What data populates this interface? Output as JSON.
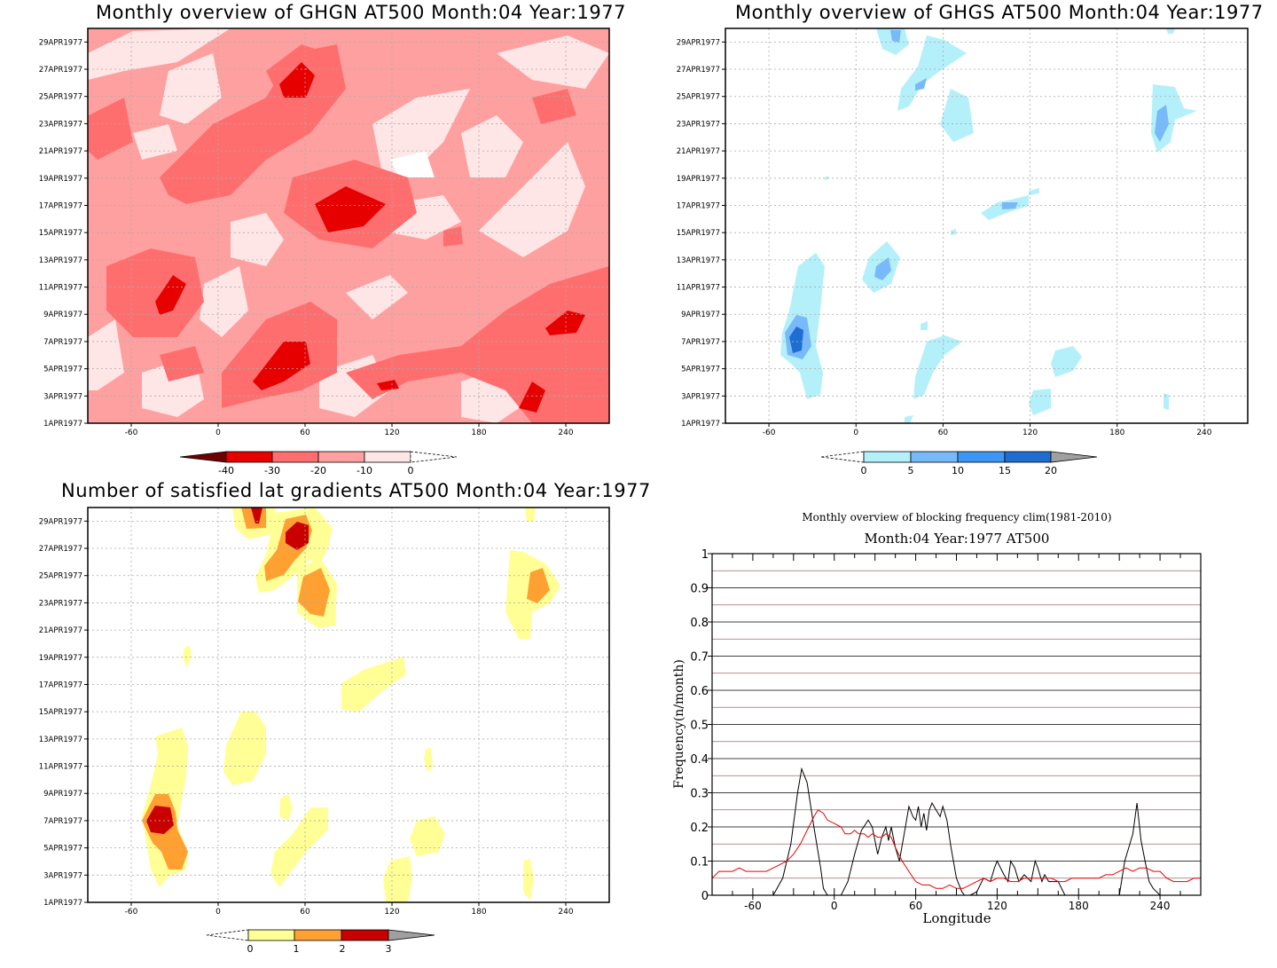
{
  "panels": {
    "ghgn": {
      "title": "Monthly overview of GHGN AT500 Month:04 Year:1977",
      "colorbar_labels": [
        "-40",
        "-30",
        "-20",
        "-10",
        "0"
      ],
      "colors": [
        "#6e0000",
        "#e60000",
        "#ff6e6e",
        "#ffa0a0",
        "#ffe6e6"
      ]
    },
    "ghgs": {
      "title": "Monthly overview of GHGS AT500 Month:04 Year:1977",
      "colorbar_labels": [
        "0",
        "5",
        "10",
        "15",
        "20"
      ],
      "colors": [
        "#b4f0fa",
        "#78b9fa",
        "#3c96f5",
        "#1e6ed2",
        "#a0a0a0"
      ]
    },
    "gradients": {
      "title": "Number of satisfied lat gradients AT500 Month:04 Year:1977",
      "colorbar_labels": [
        "0",
        "1",
        "2",
        "3"
      ],
      "colors": [
        "#ffff96",
        "#ffa032",
        "#c80000",
        "#a0a0a0"
      ]
    }
  },
  "y_ticks": [
    "29APR1977",
    "27APR1977",
    "25APR1977",
    "23APR1977",
    "21APR1977",
    "19APR1977",
    "17APR1977",
    "15APR1977",
    "13APR1977",
    "11APR1977",
    "9APR1977",
    "7APR1977",
    "5APR1977",
    "3APR1977",
    "1APR1977"
  ],
  "x_ticks": [
    "-60",
    "0",
    "60",
    "120",
    "180",
    "240"
  ],
  "chart_data": {
    "type": "line",
    "title": "Monthly overview of blocking frequency clim(1981-2010)",
    "subtitle": "Month:04 Year:1977  AT500",
    "xlabel": "Longitude",
    "ylabel": "Frequency(n/month)",
    "xlim": [
      -90,
      270
    ],
    "ylim": [
      0,
      1
    ],
    "x_ticks": [
      "-60",
      "0",
      "60",
      "120",
      "180",
      "240"
    ],
    "y_ticks": [
      "0",
      "0.1",
      "0.2",
      "0.3",
      "0.4",
      "0.5",
      "0.6",
      "0.7",
      "0.8",
      "0.9",
      "1"
    ],
    "grid": true,
    "series": [
      {
        "color": "#000000",
        "x": [
          -90,
          -45,
          -38,
          -32,
          -27,
          -24,
          -20,
          -15,
          -10,
          -8,
          -5,
          0,
          5,
          10,
          15,
          20,
          25,
          28,
          32,
          35,
          38,
          40,
          42,
          45,
          48,
          52,
          55,
          58,
          60,
          62,
          64,
          66,
          68,
          70,
          72,
          75,
          78,
          80,
          83,
          86,
          90,
          94,
          96,
          100,
          105,
          110,
          115,
          118,
          120,
          125,
          128,
          130,
          133,
          136,
          140,
          145,
          148,
          150,
          153,
          155,
          158,
          162,
          165,
          170,
          180,
          190,
          200,
          210,
          214,
          217,
          220,
          223,
          226,
          229,
          232,
          235,
          240,
          245,
          250,
          270
        ],
        "y": [
          0,
          0,
          0.05,
          0.15,
          0.3,
          0.37,
          0.33,
          0.2,
          0.08,
          0.02,
          0,
          0,
          0,
          0.04,
          0.12,
          0.19,
          0.22,
          0.2,
          0.12,
          0.17,
          0.2,
          0.16,
          0.2,
          0.14,
          0.1,
          0.19,
          0.26,
          0.23,
          0.22,
          0.26,
          0.2,
          0.24,
          0.19,
          0.25,
          0.27,
          0.25,
          0.23,
          0.26,
          0.22,
          0.14,
          0.05,
          0.01,
          0,
          0,
          0.01,
          0.05,
          0.04,
          0.08,
          0.1,
          0.06,
          0.04,
          0.1,
          0.08,
          0.04,
          0.06,
          0.04,
          0.1,
          0.08,
          0.04,
          0.06,
          0.04,
          0.04,
          0.04,
          0,
          0,
          0,
          0,
          0,
          0.1,
          0.14,
          0.18,
          0.27,
          0.16,
          0.1,
          0.04,
          0.02,
          0,
          0,
          0,
          0
        ]
      },
      {
        "color": "#e60000",
        "x": [
          -90,
          -85,
          -80,
          -75,
          -70,
          -65,
          -60,
          -55,
          -50,
          -45,
          -40,
          -35,
          -30,
          -25,
          -20,
          -15,
          -12,
          -8,
          -5,
          0,
          5,
          8,
          12,
          15,
          18,
          22,
          25,
          28,
          32,
          35,
          38,
          42,
          45,
          50,
          55,
          60,
          65,
          70,
          75,
          80,
          85,
          90,
          95,
          100,
          105,
          110,
          115,
          120,
          125,
          130,
          135,
          140,
          145,
          150,
          155,
          160,
          165,
          170,
          175,
          180,
          185,
          190,
          195,
          200,
          205,
          210,
          215,
          220,
          225,
          230,
          235,
          240,
          245,
          250,
          255,
          260,
          265,
          270
        ],
        "y": [
          0.05,
          0.07,
          0.07,
          0.07,
          0.08,
          0.07,
          0.07,
          0.07,
          0.07,
          0.08,
          0.09,
          0.1,
          0.12,
          0.15,
          0.19,
          0.23,
          0.25,
          0.24,
          0.22,
          0.21,
          0.2,
          0.18,
          0.18,
          0.19,
          0.18,
          0.18,
          0.17,
          0.18,
          0.17,
          0.17,
          0.18,
          0.17,
          0.14,
          0.1,
          0.07,
          0.04,
          0.03,
          0.03,
          0.02,
          0.02,
          0.03,
          0.02,
          0.02,
          0.03,
          0.04,
          0.05,
          0.04,
          0.05,
          0.05,
          0.04,
          0.04,
          0.05,
          0.05,
          0.05,
          0.05,
          0.05,
          0.04,
          0.04,
          0.05,
          0.05,
          0.05,
          0.05,
          0.05,
          0.06,
          0.06,
          0.07,
          0.08,
          0.07,
          0.08,
          0.08,
          0.07,
          0.07,
          0.05,
          0.04,
          0.04,
          0.04,
          0.05,
          0.05
        ]
      }
    ]
  }
}
